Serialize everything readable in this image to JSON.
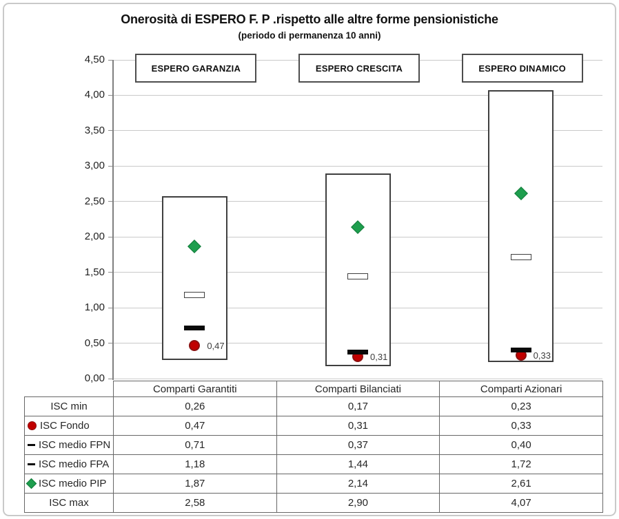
{
  "chart": {
    "title": "Onerosità di ESPERO F. P .rispetto alle altre forme pensionistiche",
    "subtitle": "(periodo di permanenza 10 anni)"
  },
  "chart_data": {
    "type": "bar",
    "subtype": "floating-range-bars-with-markers",
    "title": "Onerosità di ESPERO F. P .rispetto alle altre forme pensionistiche",
    "subtitle": "(periodo di permanenza 10 anni)",
    "categories": [
      "Comparti Garantiti",
      "Comparti Bilanciati",
      "Comparti Azionari"
    ],
    "category_boxes": [
      "ESPERO GARANZIA",
      "ESPERO CRESCITA",
      "ESPERO DINAMICO"
    ],
    "ylim": [
      0,
      4.5
    ],
    "ytick_values": [
      0,
      0.5,
      1,
      1.5,
      2,
      2.5,
      3,
      3.5,
      4,
      4.5
    ],
    "ytick_labels": [
      "0,00",
      "0,50",
      "1,00",
      "1,50",
      "2,00",
      "2,50",
      "3,00",
      "3,50",
      "4,00",
      "4,50"
    ],
    "grid": true,
    "legend_position": "table-below",
    "bar_range_series": [
      "ISC min",
      "ISC max"
    ],
    "series": [
      {
        "name": "ISC min",
        "marker": "none",
        "values": [
          0.26,
          0.17,
          0.23
        ]
      },
      {
        "name": "ISC Fondo",
        "marker": "red-circle",
        "values": [
          0.47,
          0.31,
          0.33
        ],
        "data_labels": [
          "0,47",
          "0,31",
          "0,33"
        ]
      },
      {
        "name": "ISC medio FPN",
        "marker": "black-dash",
        "values": [
          0.71,
          0.37,
          0.4
        ]
      },
      {
        "name": "ISC medio FPA",
        "marker": "white-dash",
        "values": [
          1.18,
          1.44,
          1.72
        ]
      },
      {
        "name": "ISC medio PIP",
        "marker": "green-diamond",
        "values": [
          1.87,
          2.14,
          2.61
        ]
      },
      {
        "name": "ISC max",
        "marker": "none",
        "values": [
          2.58,
          2.9,
          4.07
        ]
      }
    ],
    "colors": {
      "fondo_red": "#c00000",
      "pip_green": "#1e9e4e",
      "bar_outline": "#3f3f3f",
      "gridline": "#c9c9c9",
      "axis": "#7f7f7f"
    }
  },
  "table": {
    "column_headers": [
      "Comparti Garantiti",
      "Comparti Bilanciati",
      "Comparti Azionari"
    ],
    "rows": [
      {
        "icon": "none",
        "label": "ISC min",
        "values": [
          "0,26",
          "0,17",
          "0,23"
        ]
      },
      {
        "icon": "red-circle",
        "label": "ISC Fondo",
        "values": [
          "0,47",
          "0,31",
          "0,33"
        ]
      },
      {
        "icon": "black-dash",
        "label": "ISC medio FPN",
        "values": [
          "0,71",
          "0,37",
          "0,40"
        ]
      },
      {
        "icon": "black-dash",
        "label": "ISC medio FPA",
        "values": [
          "1,18",
          "1,44",
          "1,72"
        ]
      },
      {
        "icon": "green-diamond",
        "label": "ISC medio PIP",
        "values": [
          "1,87",
          "2,14",
          "2,61"
        ]
      },
      {
        "icon": "none",
        "label": "ISC max",
        "values": [
          "2,58",
          "2,90",
          "4,07"
        ]
      }
    ]
  }
}
